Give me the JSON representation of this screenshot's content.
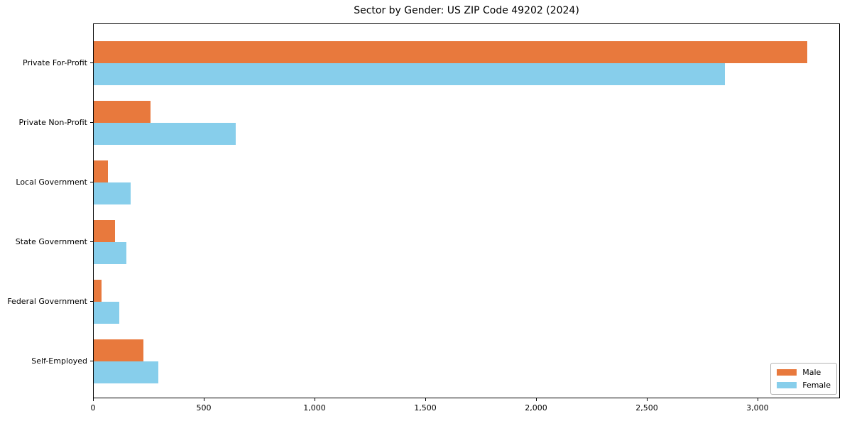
{
  "chart_data": {
    "type": "bar",
    "orientation": "horizontal",
    "title": "Sector by Gender: US ZIP Code 49202 (2024)",
    "categories": [
      "Private For-Profit",
      "Private Non-Profit",
      "Local Government",
      "State Government",
      "Federal Government",
      "Self-Employed"
    ],
    "series": [
      {
        "name": "Male",
        "color": "#E8793D",
        "values": [
          3220,
          255,
          65,
          95,
          35,
          225
        ]
      },
      {
        "name": "Female",
        "color": "#87CEEB",
        "values": [
          2850,
          640,
          165,
          148,
          115,
          290
        ]
      }
    ],
    "xlabel": "",
    "ylabel": "",
    "xlim": [
      0,
      3372
    ],
    "xticks": [
      0,
      500,
      1000,
      1500,
      2000,
      2500,
      3000
    ],
    "xtick_labels": [
      "0",
      "500",
      "1,000",
      "1,500",
      "2,000",
      "2,500",
      "3,000"
    ],
    "grid": false,
    "legend_position": "lower right",
    "frame": "full-box"
  }
}
